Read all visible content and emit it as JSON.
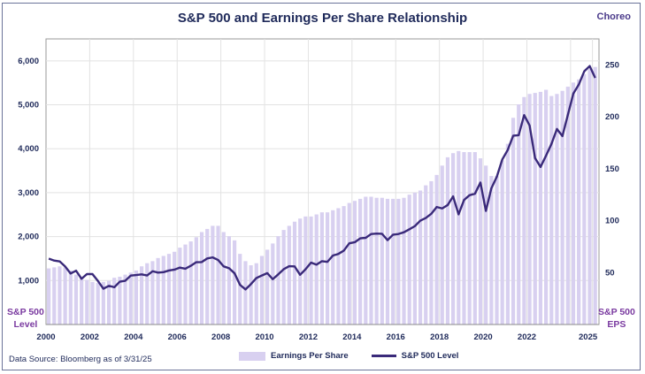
{
  "chart_data": {
    "type": "bar+line",
    "title": "S&P 500 and Earnings Per Share Relationship",
    "brand": "Choreo",
    "source": "Data Source: Bloomberg as of 3/31/25",
    "left_axis": {
      "label_line1": "S&P 500",
      "label_line2": "Level",
      "ticks": [
        "1,000",
        "2,000",
        "3,000",
        "4,000",
        "5,000",
        "6,000"
      ],
      "tick_values": [
        1000,
        2000,
        3000,
        4000,
        5000,
        6000
      ],
      "ylim": [
        0,
        6500
      ]
    },
    "right_axis": {
      "label_line1": "S&P 500",
      "label_line2": "EPS",
      "ticks": [
        "50",
        "100",
        "150",
        "200",
        "250"
      ],
      "tick_values": [
        50,
        100,
        150,
        200,
        250
      ],
      "ylim": [
        0,
        275
      ]
    },
    "x_ticks": [
      "2000",
      "2002",
      "2004",
      "2006",
      "2008",
      "2010",
      "2012",
      "2014",
      "2016",
      "2018",
      "2020",
      "2022",
      "2025"
    ],
    "x_tick_values": [
      2000,
      2002,
      2004,
      2006,
      2008,
      2010,
      2012,
      2014,
      2016,
      2018,
      2020,
      2022,
      2025
    ],
    "xlim": [
      2000,
      2025.3
    ],
    "grid": true,
    "legend_position": "bottom",
    "start_year": 2000,
    "frequency": "quarterly",
    "series": [
      {
        "name": "Earnings Per Share",
        "type": "bar",
        "axis": "right",
        "color": "#d8d0f0",
        "values": [
          54,
          55,
          56,
          55,
          52,
          48,
          45,
          43,
          41,
          40,
          41,
          42,
          45,
          46,
          48,
          50,
          52,
          56,
          59,
          61,
          64,
          66,
          68,
          70,
          74,
          77,
          80,
          84,
          89,
          92,
          95,
          95,
          89,
          85,
          81,
          68,
          61,
          57,
          59,
          66,
          72,
          78,
          85,
          91,
          95,
          99,
          102,
          104,
          104,
          106,
          108,
          108,
          110,
          112,
          114,
          117,
          119,
          121,
          123,
          123,
          122,
          122,
          121,
          121,
          121,
          122,
          125,
          127,
          129,
          134,
          138,
          144,
          153,
          161,
          165,
          167,
          166,
          166,
          166,
          160,
          153,
          143,
          143,
          158,
          174,
          199,
          212,
          219,
          222,
          223,
          224,
          226,
          220,
          222,
          225,
          229,
          233,
          236,
          241,
          246,
          248
        ]
      },
      {
        "name": "S&P 500 Level",
        "type": "line",
        "axis": "left",
        "color": "#3a2a7a",
        "values": [
          1499,
          1455,
          1436,
          1320,
          1160,
          1224,
          1041,
          1148,
          1147,
          990,
          815,
          880,
          848,
          975,
          996,
          1112,
          1126,
          1141,
          1115,
          1212,
          1181,
          1191,
          1229,
          1248,
          1295,
          1270,
          1336,
          1418,
          1421,
          1503,
          1527,
          1468,
          1323,
          1280,
          1166,
          903,
          798,
          919,
          1057,
          1115,
          1169,
          1031,
          1141,
          1258,
          1326,
          1321,
          1131,
          1258,
          1408,
          1362,
          1441,
          1426,
          1569,
          1606,
          1682,
          1848,
          1872,
          1960,
          1972,
          2059,
          2068,
          2063,
          1920,
          2044,
          2060,
          2099,
          2168,
          2239,
          2363,
          2423,
          2519,
          2674,
          2641,
          2718,
          2914,
          2507,
          2834,
          2942,
          2977,
          3231,
          2585,
          3100,
          3363,
          3756,
          3973,
          4298,
          4308,
          4766,
          4530,
          3785,
          3586,
          3840,
          4109,
          4450,
          4288,
          4770,
          5254,
          5460,
          5762,
          5882,
          5612
        ]
      }
    ]
  }
}
